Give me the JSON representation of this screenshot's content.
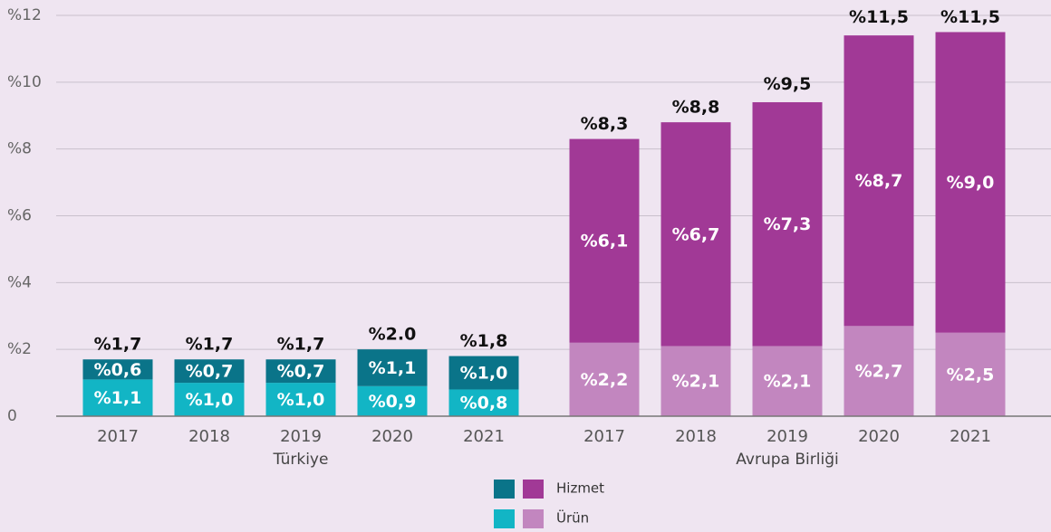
{
  "chart_data": {
    "type": "stacked-bar",
    "ylim": [
      0,
      12
    ],
    "yticks": [
      0,
      {
        "value": 2,
        "label": "%2"
      },
      {
        "value": 4,
        "label": "%4"
      },
      {
        "value": 6,
        "label": "%6"
      },
      {
        "value": 8,
        "label": "%8"
      },
      {
        "value": 10,
        "label": "%10"
      },
      {
        "value": 12,
        "label": "%12"
      }
    ],
    "grid": true,
    "groups": [
      {
        "name": "Türkiye",
        "categories": [
          "2017",
          "2018",
          "2019",
          "2020",
          "2021"
        ],
        "series": [
          {
            "name": "Ürün",
            "color": "#12b5c5",
            "values": [
              1.1,
              1.0,
              1.0,
              0.9,
              0.8
            ],
            "value_labels": [
              "%1,1",
              "%1,0",
              "%1,0",
              "%0,9",
              "%0,8"
            ]
          },
          {
            "name": "Hizmet",
            "color": "#0a7489",
            "values": [
              0.6,
              0.7,
              0.7,
              1.1,
              1.0
            ],
            "value_labels": [
              "%0,6",
              "%0,7",
              "%0,7",
              "%1,1",
              "%1,0"
            ]
          }
        ],
        "totals": [
          1.7,
          1.7,
          1.7,
          2.0,
          1.8
        ],
        "total_labels": [
          "%1,7",
          "%1,7",
          "%1,7",
          "%2.0",
          "%1,8"
        ]
      },
      {
        "name": "Avrupa Birliği",
        "categories": [
          "2017",
          "2018",
          "2019",
          "2020",
          "2021"
        ],
        "series": [
          {
            "name": "Ürün",
            "color": "#c286bf",
            "values": [
              2.2,
              2.1,
              2.1,
              2.7,
              2.5
            ],
            "value_labels": [
              "%2,2",
              "%2,1",
              "%2,1",
              "%2,7",
              "%2,5"
            ]
          },
          {
            "name": "Hizmet",
            "color": "#a13996",
            "values": [
              6.1,
              6.7,
              7.3,
              8.7,
              9.0
            ],
            "value_labels": [
              "%6,1",
              "%6,7",
              "%7,3",
              "%8,7",
              "%9,0"
            ]
          }
        ],
        "totals": [
          8.3,
          8.8,
          9.5,
          11.5,
          11.5
        ],
        "total_labels": [
          "%8,3",
          "%8,8",
          "%9,5",
          "%11,5",
          "%11,5"
        ]
      }
    ]
  }
}
